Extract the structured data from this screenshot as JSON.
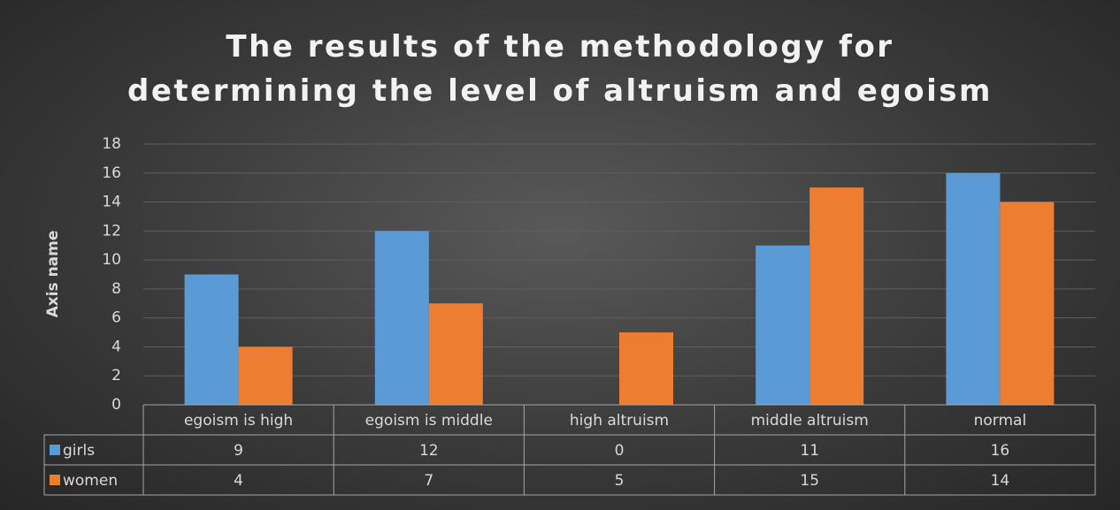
{
  "chart_data": {
    "type": "bar",
    "title": "The results of the methodology for determining the level of altruism and egoism",
    "y_axis_label": "Axis name",
    "categories": [
      "egoism is high",
      "egoism is middle",
      "high altruism",
      "middle altruism",
      "normal"
    ],
    "series": [
      {
        "name": "girls",
        "color": "#5b9bd5",
        "values": [
          9,
          12,
          0,
          11,
          16
        ]
      },
      {
        "name": "women",
        "color": "#ed7d31",
        "values": [
          4,
          7,
          5,
          15,
          14
        ]
      }
    ],
    "ylim": [
      0,
      18
    ],
    "yticks": [
      0,
      2,
      4,
      6,
      8,
      10,
      12,
      14,
      16,
      18
    ],
    "grid": true
  }
}
